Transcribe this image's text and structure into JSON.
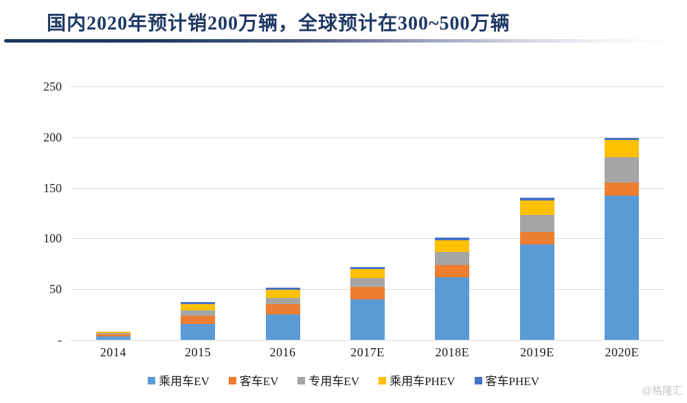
{
  "page": {
    "title": "国内2020年预计销200万辆，全球预计在300~500万辆",
    "watermark": "@格隆汇"
  },
  "chart_data": {
    "type": "bar",
    "stacked": true,
    "title": "国内2020年预计销200万辆，全球预计在300~500万辆",
    "categories": [
      "2014",
      "2015",
      "2016",
      "2017E",
      "2018E",
      "2019E",
      "2020E"
    ],
    "series": [
      {
        "name": "乘用车EV",
        "color": "#5B9BD5",
        "values": [
          3.5,
          15.5,
          25,
          40,
          62,
          94,
          142
        ]
      },
      {
        "name": "客车EV",
        "color": "#ED7D31",
        "values": [
          2,
          8,
          10.5,
          12,
          12,
          12.5,
          13
        ]
      },
      {
        "name": "专用车EV",
        "color": "#A5A5A5",
        "values": [
          1,
          5.5,
          6,
          9,
          13,
          17,
          25.5
        ]
      },
      {
        "name": "乘用车PHEV",
        "color": "#FFC000",
        "values": [
          1.5,
          6.5,
          8,
          9,
          11.5,
          14,
          16.5
        ]
      },
      {
        "name": "客车PHEV",
        "color": "#4472C4",
        "values": [
          0.5,
          1.5,
          2,
          2,
          2.5,
          2.5,
          2
        ]
      }
    ],
    "totals": [
      8.5,
      37,
      51.5,
      72,
      101,
      140,
      199
    ],
    "xlabel": "",
    "ylabel": "",
    "ylim": [
      0,
      250
    ],
    "yticks": [
      {
        "value": 250,
        "label": "250"
      },
      {
        "value": 200,
        "label": "200"
      },
      {
        "value": 150,
        "label": "150"
      },
      {
        "value": 100,
        "label": "100"
      },
      {
        "value": 50,
        "label": "50"
      },
      {
        "value": 0,
        "label": "-"
      }
    ],
    "grid": true,
    "legend_position": "bottom"
  }
}
